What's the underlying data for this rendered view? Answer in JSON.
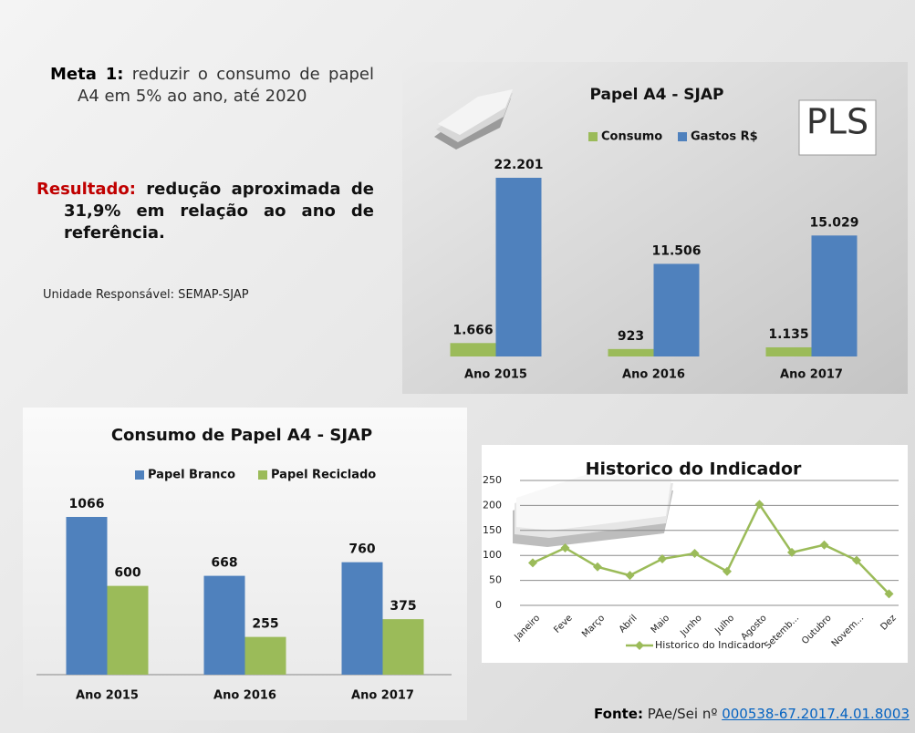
{
  "meta": {
    "label": "Meta 1:",
    "text": "reduzir o consumo de papel A4 em 5% ao ano, até 2020"
  },
  "resultado": {
    "label": "Resultado:",
    "text": "redução aproximada de 31,9% em relação ao ano de referência."
  },
  "unidade": "Unidade Responsável:  SEMAP-SJAP",
  "logo": "PLS",
  "fonte": {
    "label": "Fonte:",
    "text": "PAe/Sei nº",
    "link": "000538-67.2017.4.01.8003"
  },
  "chart_data": [
    {
      "type": "bar",
      "title": "Papel A4 - SJAP",
      "categories": [
        "Ano 2015",
        "Ano 2016",
        "Ano 2017"
      ],
      "series": [
        {
          "name": "Consumo",
          "color": "#9bbb59",
          "values": [
            1666,
            923,
            1135
          ],
          "value_labels": [
            "1.666",
            "923",
            "1.135"
          ]
        },
        {
          "name": "Gastos R$",
          "color": "#4f81bd",
          "values": [
            22201,
            11506,
            15029
          ],
          "value_labels": [
            "22.201",
            "11.506",
            "15.029"
          ]
        }
      ]
    },
    {
      "type": "bar",
      "title": "Consumo de Papel A4 - SJAP",
      "categories": [
        "Ano 2015",
        "Ano 2016",
        "Ano 2017"
      ],
      "series": [
        {
          "name": "Papel Branco",
          "color": "#4f81bd",
          "values": [
            1066,
            668,
            760
          ]
        },
        {
          "name": "Papel Reciclado",
          "color": "#9bbb59",
          "values": [
            600,
            255,
            375
          ]
        }
      ]
    },
    {
      "type": "line",
      "title": "Historico do Indicador",
      "categories": [
        "Janeiro",
        "Feve",
        "Março",
        "Abril",
        "Maio",
        "Junho",
        "Julho",
        "Agosto",
        "Setemb...",
        "Outubro",
        "Novem...",
        "Dez"
      ],
      "series": [
        {
          "name": "Historico do Indicador",
          "color": "#9bbb59",
          "values": [
            85,
            115,
            77,
            60,
            93,
            104,
            68,
            202,
            106,
            121,
            90,
            23
          ]
        }
      ],
      "ylim": [
        0,
        250
      ],
      "yticks": [
        0,
        50,
        100,
        150,
        200,
        250
      ],
      "grid": true
    }
  ]
}
